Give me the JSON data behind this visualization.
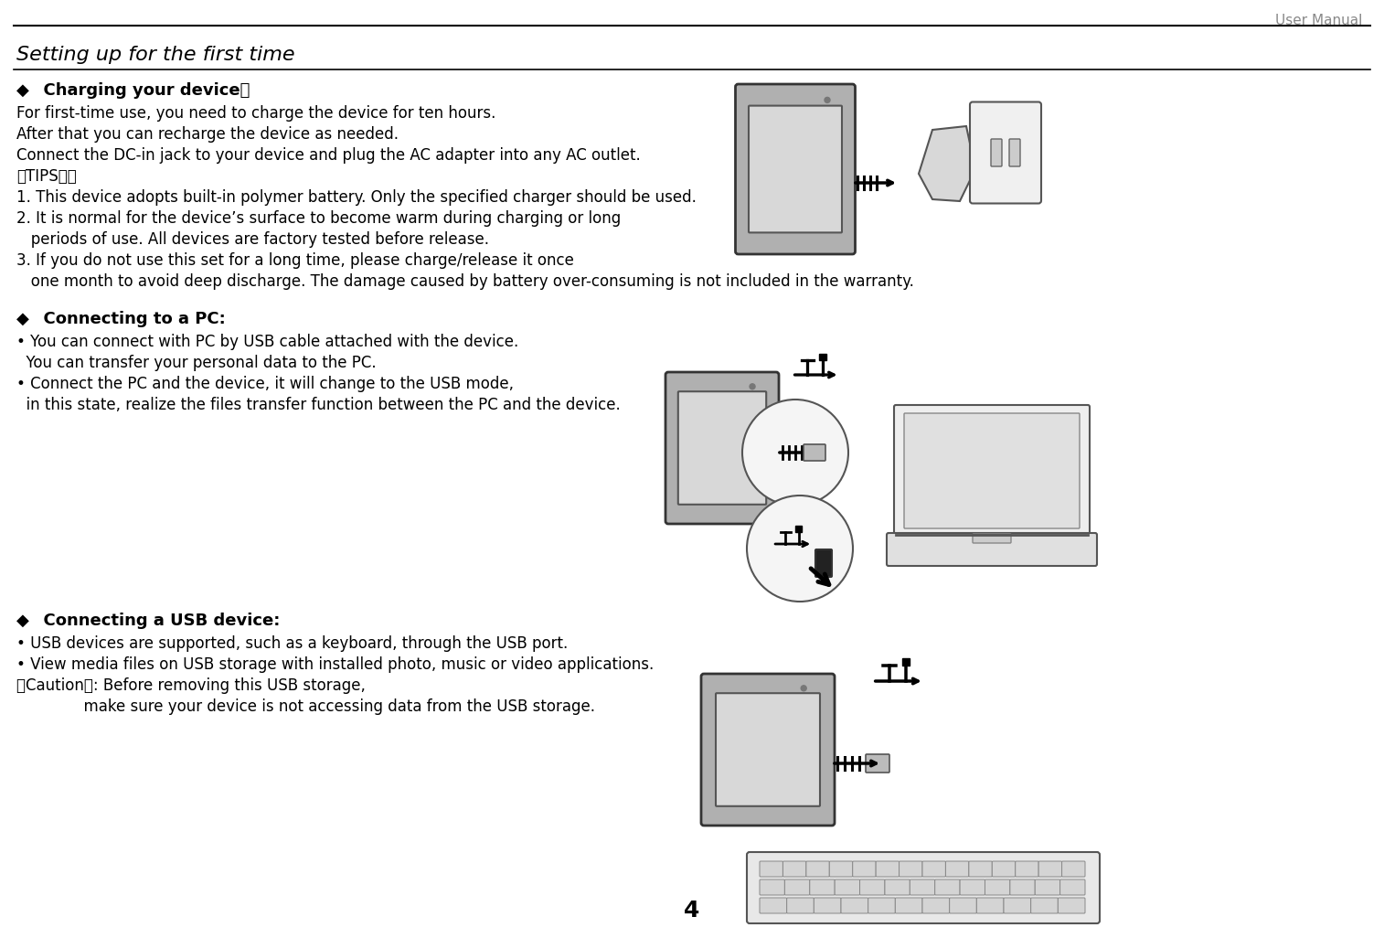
{
  "page_number": "4",
  "header_text": "User Manual",
  "section_title": "Setting up for the first time",
  "bg_color": "#ffffff",
  "text_color": "#000000",
  "header_color": "#888888",
  "s1_heading": "  Charging your device：",
  "s1_lines": [
    "For first-time use, you need to charge the device for ten hours.",
    "After that you can recharge the device as needed.",
    "Connect the DC-in jack to your device and plug the AC adapter into any AC outlet.",
    "【TIPS】：",
    "1. This device adopts built-in polymer battery. Only the specified charger should be used.",
    "2. It is normal for the device’s surface to become warm during charging or long",
    "   periods of use. All devices are factory tested before release.",
    "3. If you do not use this set for a long time, please charge/release it once",
    "   one month to avoid deep discharge. The damage caused by battery over-consuming is not included in the warranty."
  ],
  "s2_heading": "  Connecting to a PC:",
  "s2_lines": [
    "• You can connect with PC by USB cable attached with the device.",
    "  You can transfer your personal data to the PC.",
    "• Connect the PC and the device, it will change to the USB mode,",
    "  in this state, realize the files transfer function between the PC and the device."
  ],
  "s3_heading": "  Connecting a USB device:",
  "s3_lines": [
    "• USB devices are supported, such as a keyboard, through the USB port.",
    "• View media files on USB storage with installed photo, music or video applications.",
    "【Caution】: Before removing this USB storage,",
    "              make sure your device is not accessing data from the USB storage."
  ]
}
